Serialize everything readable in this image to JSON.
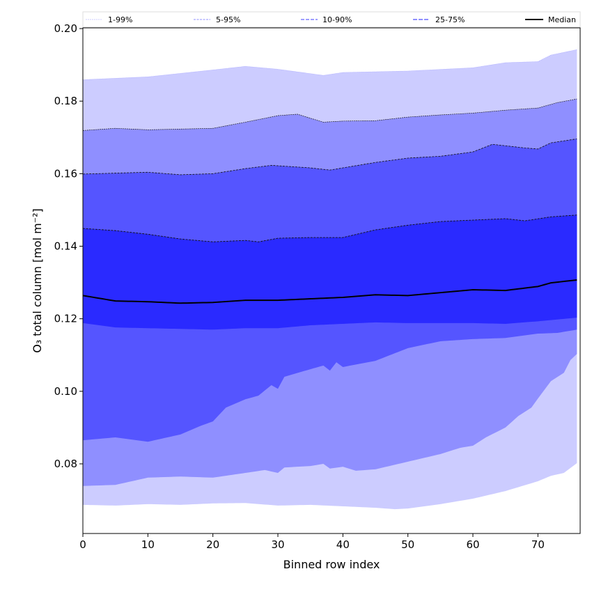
{
  "chart_data": {
    "type": "area",
    "title": "",
    "xlabel": "Binned row index",
    "ylabel": "O₃ total column [mol m⁻²]",
    "xlim": [
      0,
      76.5
    ],
    "ylim": [
      0.0608,
      0.2002
    ],
    "xticks": [
      0,
      10,
      20,
      30,
      40,
      50,
      60,
      70
    ],
    "yticks": [
      "0.08",
      "0.10",
      "0.12",
      "0.14",
      "0.16",
      "0.18",
      "0.20"
    ],
    "legend": {
      "placement": "top",
      "entries": [
        "1-99%",
        "5-95%",
        "10-90%",
        "25-75%",
        "Median"
      ]
    },
    "colors": {
      "band_1_99": "#ccccff",
      "band_5_95": "#8f8fff",
      "band_10_90": "#5555ff",
      "band_25_75": "#2a2aff",
      "median": "#000000"
    },
    "series": [
      {
        "name": "p99",
        "x": [
          0,
          10,
          20,
          25,
          30,
          37,
          40,
          50,
          60,
          65,
          70,
          72,
          76
        ],
        "values": [
          0.1859,
          0.1867,
          0.1886,
          0.1896,
          0.1888,
          0.1871,
          0.1879,
          0.1883,
          0.1892,
          0.1906,
          0.1909,
          0.1927,
          0.1942
        ]
      },
      {
        "name": "p95",
        "x": [
          0,
          5,
          10,
          15,
          20,
          25,
          30,
          33,
          37,
          40,
          45,
          50,
          55,
          60,
          65,
          70,
          73,
          76
        ],
        "values": [
          0.1719,
          0.1725,
          0.1721,
          0.1723,
          0.1725,
          0.1742,
          0.176,
          0.1764,
          0.1742,
          0.1745,
          0.1746,
          0.1756,
          0.1762,
          0.1767,
          0.1775,
          0.1781,
          0.1796,
          0.1806
        ]
      },
      {
        "name": "p90",
        "x": [
          0,
          10,
          15,
          20,
          25,
          29,
          35,
          38,
          45,
          50,
          55,
          60,
          63,
          68,
          70,
          72,
          76
        ],
        "values": [
          0.1599,
          0.1604,
          0.1597,
          0.16,
          0.1614,
          0.1623,
          0.1616,
          0.161,
          0.1631,
          0.1643,
          0.1648,
          0.166,
          0.1681,
          0.1671,
          0.1668,
          0.1685,
          0.1696
        ]
      },
      {
        "name": "p75",
        "x": [
          0,
          5,
          10,
          15,
          20,
          25,
          27,
          30,
          35,
          40,
          45,
          50,
          55,
          60,
          65,
          68,
          72,
          76
        ],
        "values": [
          0.1449,
          0.1443,
          0.1433,
          0.142,
          0.1412,
          0.1416,
          0.1412,
          0.1422,
          0.1424,
          0.1424,
          0.1445,
          0.1458,
          0.1468,
          0.1472,
          0.1476,
          0.147,
          0.1481,
          0.1486
        ]
      },
      {
        "name": "Median",
        "x": [
          0,
          5,
          10,
          15,
          20,
          25,
          30,
          35,
          40,
          45,
          50,
          55,
          60,
          65,
          70,
          72,
          76
        ],
        "values": [
          0.1264,
          0.1249,
          0.1247,
          0.1243,
          0.1245,
          0.1251,
          0.1251,
          0.1255,
          0.1259,
          0.1266,
          0.1264,
          0.1272,
          0.128,
          0.1278,
          0.1289,
          0.1299,
          0.1307
        ]
      },
      {
        "name": "p25",
        "x": [
          0,
          5,
          10,
          15,
          20,
          25,
          30,
          35,
          40,
          45,
          50,
          55,
          60,
          65,
          70,
          76
        ],
        "values": [
          0.1188,
          0.1176,
          0.1174,
          0.1172,
          0.117,
          0.1174,
          0.1174,
          0.1182,
          0.1186,
          0.119,
          0.1188,
          0.1188,
          0.1188,
          0.1186,
          0.1193,
          0.1203
        ]
      },
      {
        "name": "p10",
        "x": [
          0,
          5,
          10,
          15,
          18,
          20,
          22,
          25,
          27,
          29,
          30,
          31,
          35,
          37,
          38,
          39,
          40,
          45,
          50,
          55,
          60,
          65,
          70,
          73,
          76
        ],
        "values": [
          0.0865,
          0.0873,
          0.0861,
          0.0881,
          0.0904,
          0.0917,
          0.0955,
          0.0978,
          0.0988,
          0.1017,
          0.1007,
          0.104,
          0.1061,
          0.1071,
          0.1057,
          0.108,
          0.1067,
          0.1084,
          0.1119,
          0.1138,
          0.1144,
          0.1147,
          0.1159,
          0.1161,
          0.117
        ]
      },
      {
        "name": "p5",
        "x": [
          0,
          5,
          10,
          15,
          20,
          25,
          28,
          30,
          31,
          35,
          37,
          38,
          40,
          42,
          45,
          50,
          55,
          58,
          60,
          62,
          65,
          67,
          69,
          70,
          72,
          74,
          75,
          76
        ],
        "values": [
          0.0739,
          0.0742,
          0.0762,
          0.0765,
          0.0762,
          0.0775,
          0.0783,
          0.0775,
          0.079,
          0.0794,
          0.08,
          0.0787,
          0.0792,
          0.0781,
          0.0785,
          0.0806,
          0.0827,
          0.0844,
          0.085,
          0.0873,
          0.09,
          0.0932,
          0.0955,
          0.098,
          0.1028,
          0.1051,
          0.1086,
          0.1103
        ]
      },
      {
        "name": "p1",
        "x": [
          0,
          5,
          10,
          15,
          20,
          25,
          30,
          35,
          40,
          45,
          48,
          50,
          55,
          60,
          65,
          70,
          72,
          74,
          76
        ],
        "values": [
          0.0687,
          0.0685,
          0.0689,
          0.0687,
          0.0691,
          0.0692,
          0.0685,
          0.0687,
          0.0683,
          0.0679,
          0.0675,
          0.0677,
          0.0689,
          0.0704,
          0.0725,
          0.0752,
          0.0767,
          0.0775,
          0.0802
        ]
      }
    ]
  }
}
